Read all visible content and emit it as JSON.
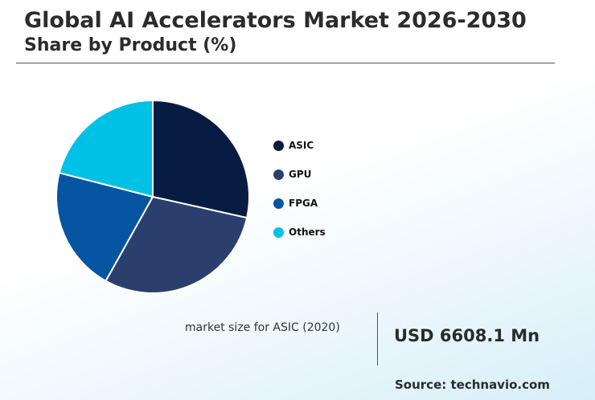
{
  "header": {
    "title": "Global AI Accelerators Market 2026-2030",
    "subtitle": "Share by Product (%)"
  },
  "chart_data": {
    "type": "pie",
    "title": "Global AI Accelerators Market 2026-2030",
    "subtitle": "Share by Product (%)",
    "categories": [
      "ASIC",
      "GPU",
      "FPGA",
      "Others"
    ],
    "values": [
      28.5,
      29.6,
      20.9,
      21.0
    ],
    "colors": [
      "#061c42",
      "#2b3f6f",
      "#0555a3",
      "#01c2e6"
    ],
    "legend": "right"
  },
  "kpi": {
    "label": "market size for ASIC (2020)",
    "value": "USD 6608.1 Mn"
  },
  "footer": {
    "source": "Source: technavio.com"
  }
}
